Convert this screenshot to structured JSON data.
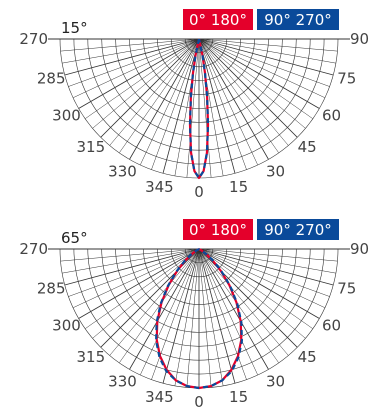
{
  "colors": {
    "series_0_180": "#e4002b",
    "series_90_270": "#0a4a9a",
    "grid": "#333333",
    "legend_text": "#ffffff"
  },
  "chart_data": [
    {
      "type": "polar",
      "title": "15°",
      "angle_labels": [
        "270",
        "285",
        "300",
        "315",
        "330",
        "345",
        "0",
        "15",
        "30",
        "45",
        "60",
        "75",
        "90"
      ],
      "legend": [
        {
          "label": "0° 180°",
          "color": "#e4002b"
        },
        {
          "label": "90° 270°",
          "color": "#0a4a9a"
        }
      ],
      "series": [
        {
          "name": "0° 180°",
          "angles": [
            0,
            2,
            4,
            6,
            8,
            10,
            12,
            15
          ],
          "values": [
            1.0,
            0.95,
            0.82,
            0.62,
            0.42,
            0.25,
            0.12,
            0.0
          ]
        },
        {
          "name": "90° 270°",
          "angles": [
            0,
            2,
            4,
            6,
            8,
            10,
            12,
            15
          ],
          "values": [
            1.0,
            0.95,
            0.82,
            0.62,
            0.42,
            0.25,
            0.12,
            0.0
          ]
        }
      ]
    },
    {
      "type": "polar",
      "title": "65°",
      "angle_labels": [
        "270",
        "285",
        "300",
        "315",
        "330",
        "345",
        "0",
        "15",
        "30",
        "45",
        "60",
        "75",
        "90"
      ],
      "legend": [
        {
          "label": "0° 180°",
          "color": "#e4002b"
        },
        {
          "label": "90° 270°",
          "color": "#0a4a9a"
        }
      ],
      "series": [
        {
          "name": "0° 180°",
          "angles": [
            0,
            5,
            10,
            15,
            20,
            25,
            30,
            35,
            40,
            45,
            50,
            55,
            60,
            65
          ],
          "values": [
            1.0,
            0.99,
            0.96,
            0.9,
            0.82,
            0.72,
            0.6,
            0.47,
            0.34,
            0.22,
            0.13,
            0.06,
            0.02,
            0.0
          ]
        },
        {
          "name": "90° 270°",
          "angles": [
            0,
            5,
            10,
            15,
            20,
            25,
            30,
            35,
            40,
            45,
            50,
            55,
            60,
            65
          ],
          "values": [
            1.0,
            0.99,
            0.96,
            0.91,
            0.83,
            0.73,
            0.61,
            0.48,
            0.35,
            0.23,
            0.14,
            0.07,
            0.02,
            0.0
          ]
        }
      ]
    }
  ]
}
